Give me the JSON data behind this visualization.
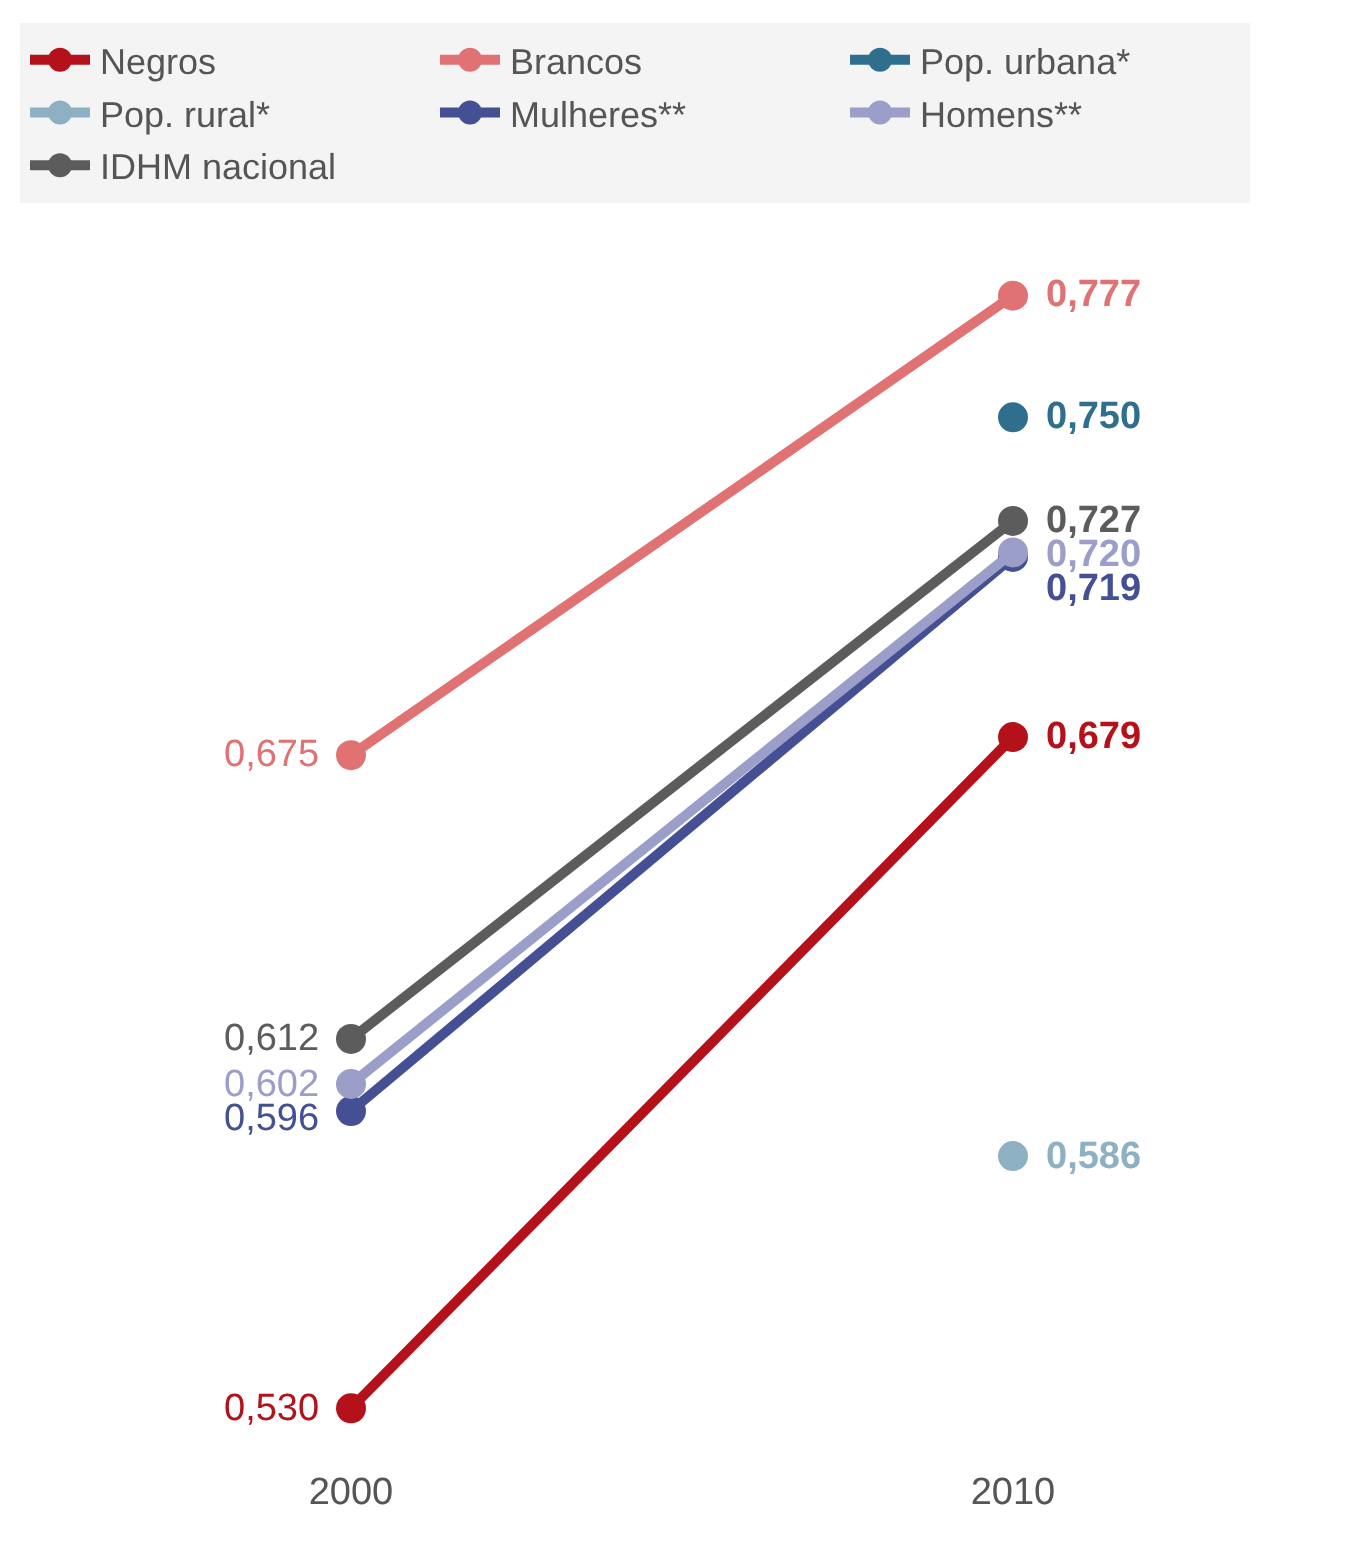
{
  "chart_data": {
    "type": "line",
    "categories": [
      "2000",
      "2010"
    ],
    "legend": "top",
    "marker": "circle",
    "line_style": "solid",
    "grid": false,
    "series": [
      {
        "name": "Negros",
        "color": "#b5111b",
        "values": [
          0.53,
          0.679
        ],
        "value_labels": [
          "0,530",
          "0,679"
        ]
      },
      {
        "name": "Brancos",
        "color": "#e07274",
        "values": [
          0.675,
          0.777
        ],
        "value_labels": [
          "0,675",
          "0,777"
        ]
      },
      {
        "name": "Pop. urbana*",
        "color": "#2f6f8d",
        "values": [
          null,
          0.75
        ],
        "value_labels": [
          null,
          "0,750"
        ]
      },
      {
        "name": "Pop. rural*",
        "color": "#8db1c2",
        "values": [
          null,
          0.586
        ],
        "value_labels": [
          null,
          "0,586"
        ]
      },
      {
        "name": "Mulheres**",
        "color": "#454f94",
        "values": [
          0.596,
          0.719
        ],
        "value_labels": [
          "0,596",
          "0,719"
        ]
      },
      {
        "name": "Homens**",
        "color": "#9a9ec9",
        "values": [
          0.602,
          0.72
        ],
        "value_labels": [
          "0,602",
          "0,720"
        ]
      },
      {
        "name": "IDHM nacional",
        "color": "#5c5c5c",
        "values": [
          0.612,
          0.727
        ],
        "value_labels": [
          "0,612",
          "0,727"
        ]
      }
    ]
  }
}
